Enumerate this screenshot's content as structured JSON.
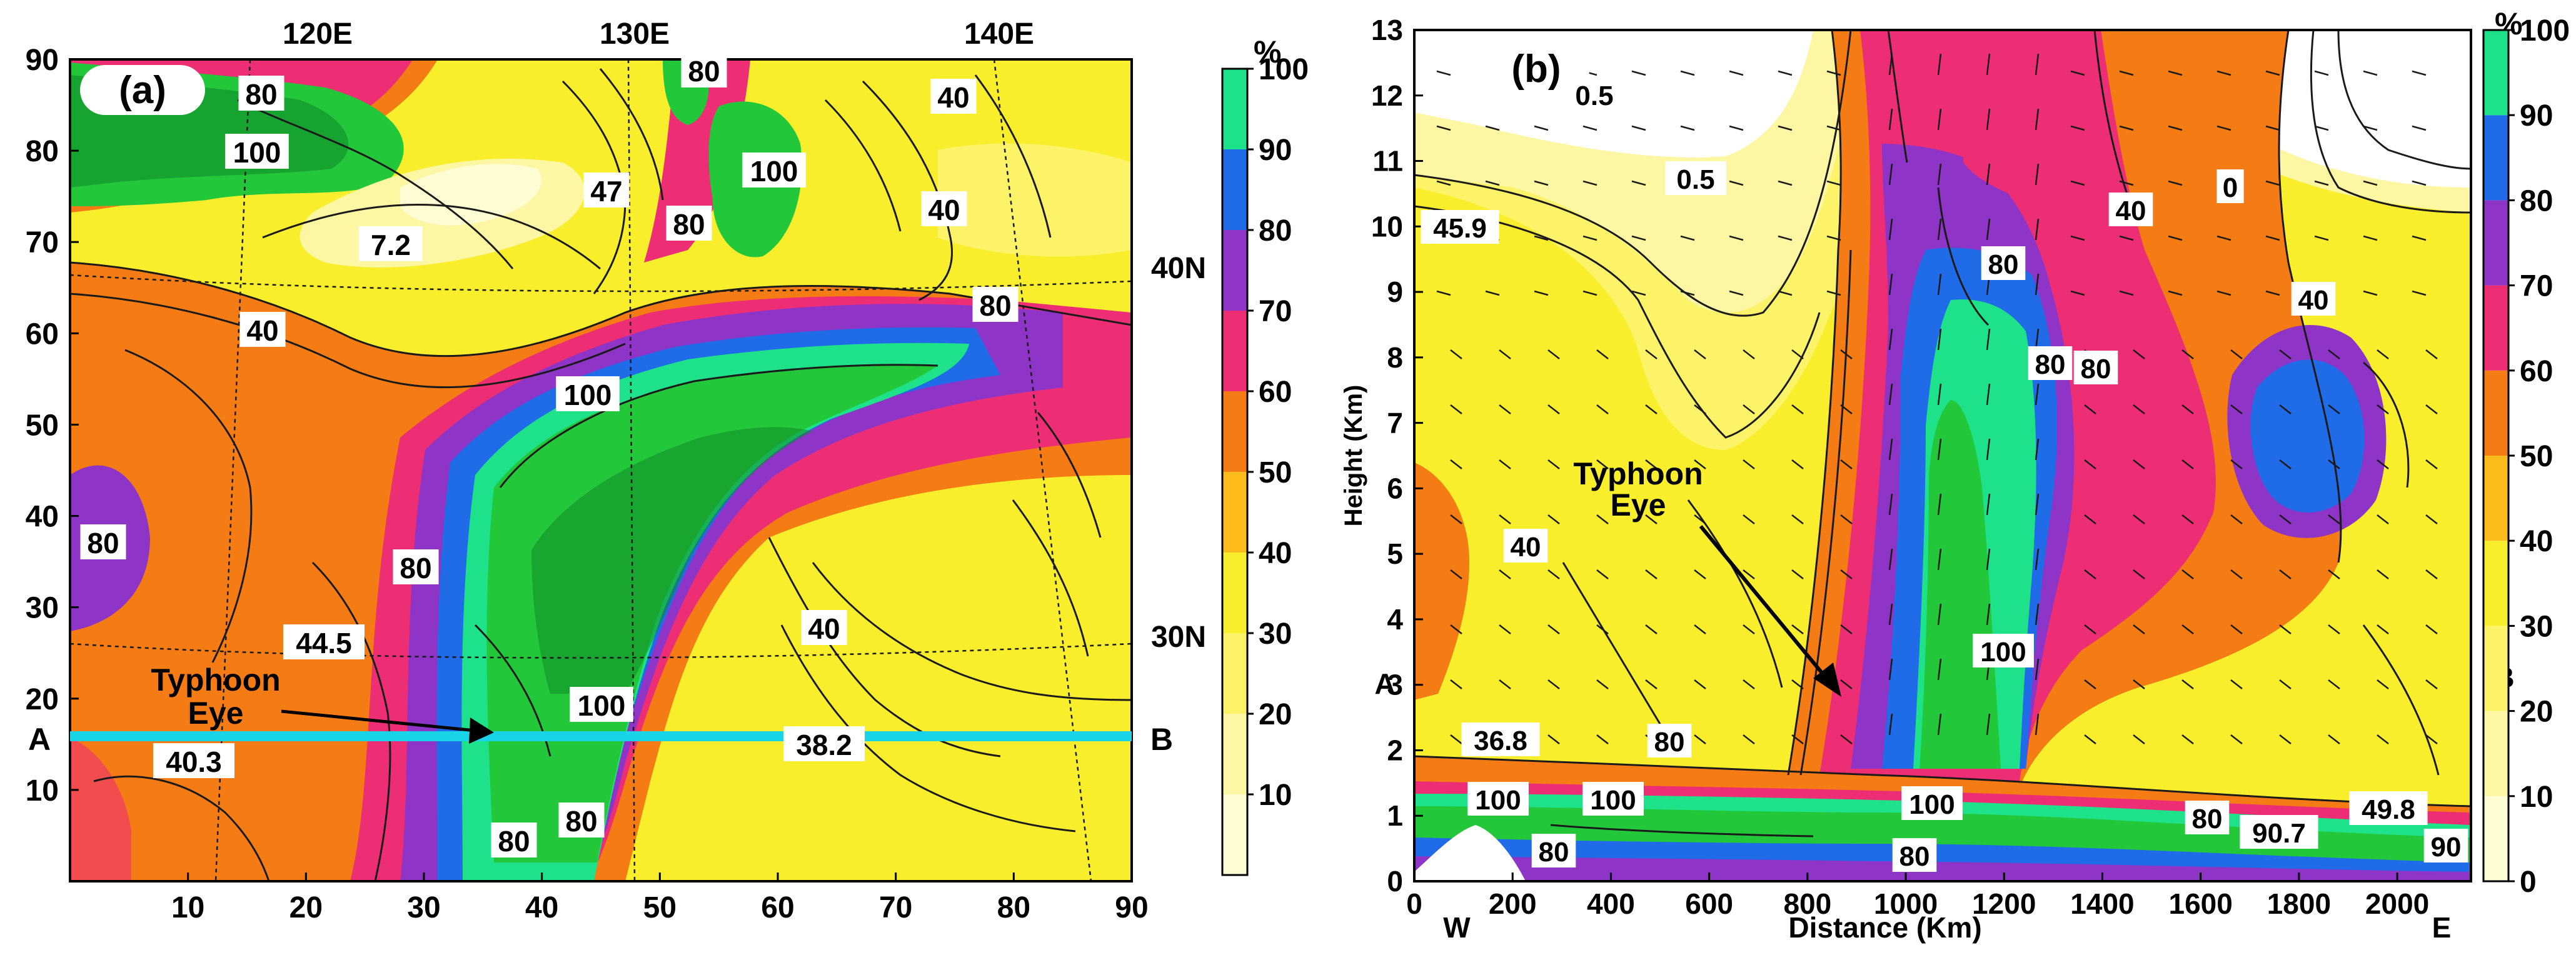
{
  "figure_colors": {
    "contour_fill": [
      "#ffffff",
      "#fefcd2",
      "#fdf6a2",
      "#fdf369",
      "#f9ee2c",
      "#fbbc1c",
      "#f57c14",
      "#ee2e74",
      "#8e35c8",
      "#1f6be8",
      "#1de28a",
      "#22c83a",
      "#118a2a"
    ],
    "section_line": "#19d3e6",
    "contour_line": "#1a1a1a"
  },
  "chart_data": [
    {
      "type": "heatmap",
      "panel_label": "(a)",
      "ylim": [
        0,
        90
      ],
      "xlim": [
        0,
        90
      ],
      "y_ticks": [
        "90",
        "80",
        "70",
        "60",
        "50",
        "40",
        "30",
        "20",
        "10"
      ],
      "x_ticks": [
        "10",
        "20",
        "30",
        "40",
        "50",
        "60",
        "70",
        "80",
        "90"
      ],
      "lon_labels": [
        "120E",
        "130E",
        "140E"
      ],
      "lat_labels": [
        "40N",
        "30N"
      ],
      "contour_labels": [
        "80",
        "100",
        "80",
        "7.2",
        "47",
        "100",
        "80",
        "40",
        "40",
        "80",
        "100",
        "40",
        "80",
        "80",
        "44.5",
        "40",
        "38.2",
        "100",
        "40.3",
        "80",
        "80"
      ],
      "section_endpoints": {
        "start": "A",
        "end": "B"
      },
      "section_y": 17,
      "annotation": {
        "line1": "Typhoon",
        "line2": "Eye"
      },
      "colorbar": {
        "unit": "%",
        "ticks": [
          "100",
          "90",
          "80",
          "70",
          "60",
          "50",
          "40",
          "30",
          "20",
          "10"
        ],
        "levels": [
          0,
          10,
          20,
          30,
          40,
          50,
          60,
          70,
          80,
          90,
          100
        ]
      }
    },
    {
      "type": "heatmap",
      "panel_label": "(b)",
      "ylabel": "Height (Km)",
      "xlabel": "Distance (Km)",
      "ylim": [
        0,
        13
      ],
      "xlim": [
        0,
        2150
      ],
      "y_ticks": [
        "13",
        "12",
        "11",
        "10",
        "9",
        "8",
        "7",
        "6",
        "5",
        "4",
        "3",
        "2",
        "1",
        "0"
      ],
      "x_ticks": [
        "0",
        "200",
        "400",
        "600",
        "800",
        "1000",
        "1200",
        "1400",
        "1600",
        "1800",
        "2000"
      ],
      "x_end_labels": {
        "left": "W",
        "right": "E"
      },
      "side_labels": {
        "left": "A",
        "right": "B"
      },
      "contour_labels": [
        "0.5",
        "0.5",
        "0",
        "45.9",
        "40",
        "40",
        "80",
        "80",
        "80",
        "40",
        "100",
        "36.8",
        "100",
        "100",
        "100",
        "80",
        "80",
        "80",
        "49.8",
        "90.7",
        "90",
        "80"
      ],
      "annotation": {
        "line1": "Typhoon",
        "line2": "Eye"
      },
      "colorbar": {
        "unit": "%",
        "ticks": [
          "100",
          "90",
          "80",
          "70",
          "60",
          "50",
          "40",
          "30",
          "20",
          "10",
          "0"
        ],
        "levels": [
          0,
          10,
          20,
          30,
          40,
          50,
          60,
          70,
          80,
          90,
          100
        ]
      }
    }
  ]
}
